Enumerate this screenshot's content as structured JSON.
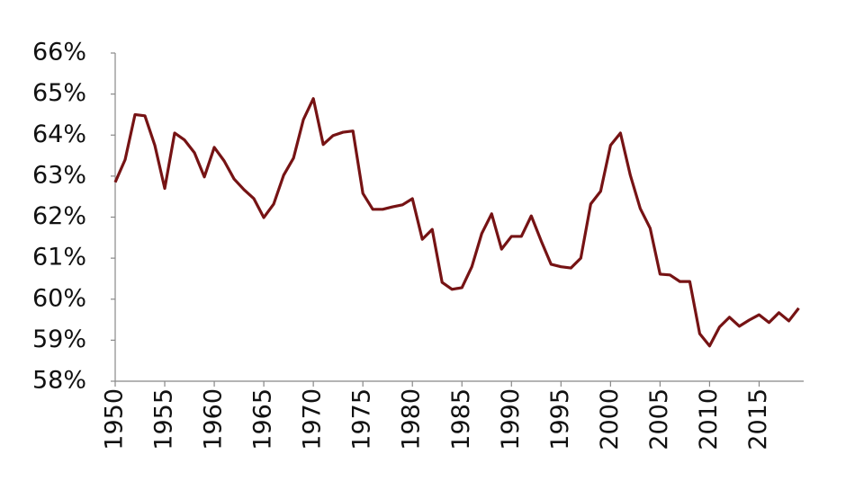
{
  "chart_data": {
    "type": "line",
    "x": [
      1950,
      1951,
      1952,
      1953,
      1954,
      1955,
      1956,
      1957,
      1958,
      1959,
      1960,
      1961,
      1962,
      1963,
      1964,
      1965,
      1966,
      1967,
      1968,
      1969,
      1970,
      1971,
      1972,
      1973,
      1974,
      1975,
      1976,
      1977,
      1978,
      1979,
      1980,
      1981,
      1982,
      1983,
      1984,
      1985,
      1986,
      1987,
      1988,
      1989,
      1990,
      1991,
      1992,
      1993,
      1994,
      1995,
      1996,
      1997,
      1998,
      1999,
      2000,
      2001,
      2002,
      2003,
      2004,
      2005,
      2006,
      2007,
      2008,
      2009,
      2010,
      2011,
      2012,
      2013,
      2014,
      2015,
      2016,
      2017,
      2018,
      2019
    ],
    "series": [
      {
        "color": "#761314",
        "values": [
          62.85,
          63.4,
          64.5,
          64.47,
          63.75,
          62.7,
          64.05,
          63.88,
          63.57,
          62.98,
          63.7,
          63.37,
          62.93,
          62.67,
          62.45,
          61.99,
          62.32,
          63.02,
          63.44,
          64.38,
          64.89,
          63.77,
          63.99,
          64.07,
          64.1,
          62.58,
          62.19,
          62.19,
          62.25,
          62.3,
          62.45,
          61.46,
          61.7,
          60.41,
          60.24,
          60.28,
          60.79,
          61.6,
          62.08,
          61.22,
          61.53,
          61.53,
          62.03,
          61.42,
          60.85,
          60.79,
          60.76,
          61.0,
          62.32,
          62.63,
          63.75,
          64.05,
          63.02,
          62.21,
          61.73,
          60.61,
          60.59,
          60.43,
          60.43,
          59.16,
          58.86,
          59.32,
          59.56,
          59.34,
          59.49,
          59.62,
          59.43,
          59.67,
          59.47,
          59.78
        ]
      }
    ],
    "xlim": [
      1950,
      2019.5
    ],
    "xticks": [
      1950,
      1955,
      1960,
      1965,
      1970,
      1975,
      1980,
      1985,
      1990,
      1995,
      2000,
      2005,
      2010,
      2015
    ],
    "ylim": [
      58,
      66
    ],
    "yticks": [
      {
        "value": 58,
        "label": "58%"
      },
      {
        "value": 59,
        "label": "59%"
      },
      {
        "value": 60,
        "label": "60%"
      },
      {
        "value": 61,
        "label": "61%"
      },
      {
        "value": 62,
        "label": "62%"
      },
      {
        "value": 63,
        "label": "63%"
      },
      {
        "value": 64,
        "label": "64%"
      },
      {
        "value": 65,
        "label": "65%"
      },
      {
        "value": 66,
        "label": "66%"
      }
    ]
  }
}
